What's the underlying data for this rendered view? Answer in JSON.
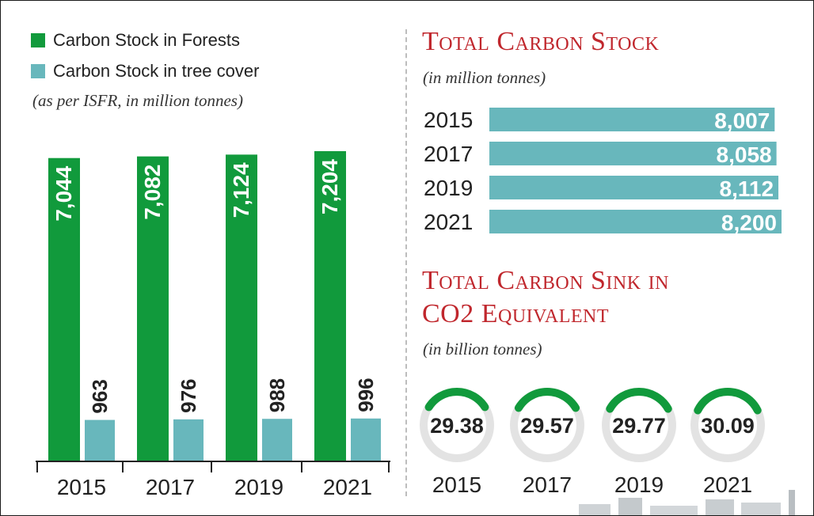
{
  "colors": {
    "forest": "#119a3c",
    "tree": "#68b7bc",
    "title_red": "#c0272d",
    "ring_bg": "#e3e3e3"
  },
  "legend": {
    "forest_label": "Carbon Stock in Forests",
    "tree_label": "Carbon Stock in tree cover",
    "note": "(as per ISFR, in million tonnes)"
  },
  "stock": {
    "title": "Total Carbon Stock",
    "note": "(in million tonnes)"
  },
  "sink": {
    "title_line1": "Total Carbon Sink in",
    "title_line2": "CO2 Equivalent",
    "note": "(in billion tonnes)"
  },
  "chart_data": [
    {
      "type": "bar",
      "categories": [
        "2015",
        "2017",
        "2019",
        "2021"
      ],
      "series": [
        {
          "name": "Carbon Stock in Forests",
          "values": [
            7044,
            7082,
            7124,
            7204
          ],
          "labels": [
            "7,044",
            "7,082",
            "7,124",
            "7,204"
          ]
        },
        {
          "name": "Carbon Stock in tree cover",
          "values": [
            963,
            976,
            988,
            996
          ],
          "labels": [
            "963",
            "976",
            "988",
            "996"
          ]
        }
      ],
      "unit": "(as per ISFR, in million tonnes)"
    },
    {
      "type": "bar",
      "orientation": "horizontal",
      "title": "Total Carbon Stock",
      "categories": [
        "2015",
        "2017",
        "2019",
        "2021"
      ],
      "values": [
        8007,
        8058,
        8112,
        8200
      ],
      "labels": [
        "8,007",
        "8,058",
        "8,112",
        "8,200"
      ],
      "unit": "(in million tonnes)"
    },
    {
      "type": "gauge",
      "title": "Total Carbon Sink in CO2 Equivalent",
      "categories": [
        "2015",
        "2017",
        "2019",
        "2021"
      ],
      "values": [
        29.38,
        29.57,
        29.77,
        30.09
      ],
      "labels": [
        "29.38",
        "29.57",
        "29.77",
        "30.09"
      ],
      "unit": "(in billion tonnes)"
    }
  ]
}
